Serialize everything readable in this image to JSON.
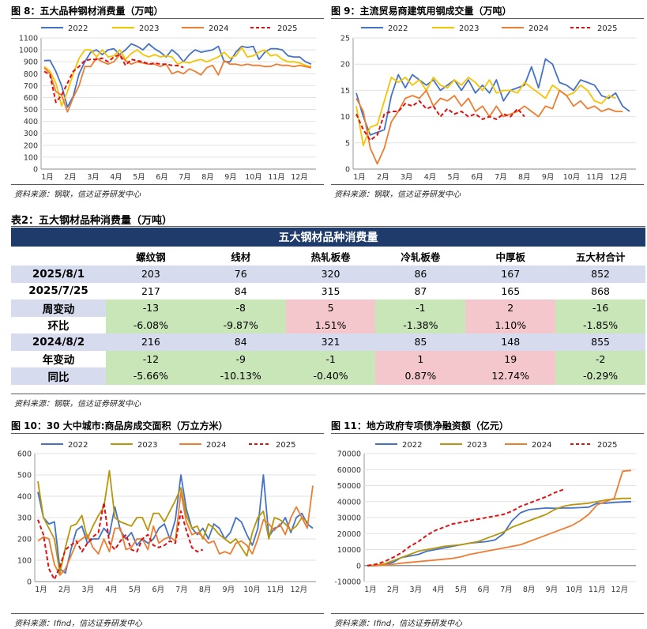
{
  "figures": {
    "fig8": {
      "title": "图 8：五大品种钢材消费量（万吨）",
      "source": "资料来源：钢联，信达证券研发中心"
    },
    "fig9": {
      "title": "图 9：主流贸易商建筑用钢成交量（万吨）",
      "source": "资料来源：钢联，信达证券研发中心"
    },
    "fig10": {
      "title": "图 10：30 大中城市:商品房成交面积（万立方米）",
      "source": "资料来源：Ifind，信达证券研发中心"
    },
    "fig11": {
      "title": "图 11：地方政府专项债净融资额（亿元）",
      "source": "资料来源：Ifind，信达证券研发中心"
    }
  },
  "table": {
    "caption": "表2：五大钢材品种消费量（万吨）",
    "title": "五大钢材品种消费量",
    "columns": [
      "",
      "螺纹钢",
      "线材",
      "热轧板卷",
      "冷轧板卷",
      "中厚板",
      "五大材合计"
    ],
    "rows": [
      {
        "label": "2025/8/1",
        "style": "blue",
        "cells": [
          "203",
          "76",
          "320",
          "86",
          "167",
          "852"
        ]
      },
      {
        "label": "2025/7/25",
        "style": "plain",
        "cells": [
          "217",
          "84",
          "315",
          "87",
          "165",
          "868"
        ]
      },
      {
        "label": "周变动",
        "style": "blue",
        "cells": [
          "-13",
          "-8",
          "5",
          "-1",
          "2",
          "-16"
        ]
      },
      {
        "label": "环比",
        "style": "plain",
        "cells": [
          "-6.08%",
          "-9.87%",
          "1.51%",
          "-1.38%",
          "1.10%",
          "-1.85%"
        ]
      },
      {
        "label": "2024/8/2",
        "style": "blue",
        "cells": [
          "216",
          "84",
          "321",
          "85",
          "148",
          "855"
        ]
      },
      {
        "label": "年变动",
        "style": "plain",
        "cells": [
          "-12",
          "-9",
          "-1",
          "1",
          "19",
          "-2"
        ]
      },
      {
        "label": "同比",
        "style": "blue",
        "cells": [
          "-5.66%",
          "-10.13%",
          "-0.40%",
          "0.87%",
          "12.74%",
          "-0.29%"
        ]
      }
    ],
    "cell_colors": {
      "negative": "#c9e6b8",
      "positive": "#f4c7cc",
      "row_highlight": "#d6dcee",
      "header": "#1f3b6b"
    }
  },
  "chart_data": [
    {
      "id": "fig8",
      "type": "line",
      "x_ticks": [
        "1月",
        "2月",
        "3月",
        "4月",
        "5月",
        "6月",
        "7月",
        "8月",
        "9月",
        "10月",
        "11月",
        "12月"
      ],
      "ylim": [
        0,
        1100
      ],
      "y_ticks": [
        0,
        100,
        200,
        300,
        400,
        500,
        600,
        700,
        800,
        900,
        1000,
        1100
      ],
      "series": [
        {
          "name": "2022",
          "color": "#4472c4",
          "dash": false,
          "values": [
            910,
            912,
            820,
            700,
            520,
            610,
            800,
            900,
            980,
            1000,
            960,
            1000,
            1010,
            960,
            1000,
            1050,
            1030,
            1000,
            1050,
            1010,
            980,
            940,
            1000,
            960,
            900,
            960,
            1000,
            980,
            990,
            1000,
            1030,
            900,
            900,
            980,
            1030,
            1020,
            1030,
            920,
            980,
            1010,
            1010,
            1000,
            950,
            940,
            940,
            900,
            880
          ]
        },
        {
          "name": "2023",
          "color": "#f5c400",
          "dash": false,
          "values": [
            860,
            820,
            720,
            530,
            650,
            800,
            930,
            1000,
            1000,
            940,
            1000,
            940,
            950,
            1000,
            920,
            970,
            1000,
            960,
            940,
            960,
            940,
            950,
            940,
            880,
            900,
            890,
            910,
            920,
            900,
            920,
            940,
            980,
            930,
            950,
            1020,
            940,
            950,
            980,
            1000,
            950,
            960,
            920,
            900,
            900,
            890,
            870,
            860
          ]
        },
        {
          "name": "2024",
          "color": "#ed7d31",
          "dash": false,
          "values": [
            850,
            800,
            650,
            620,
            480,
            600,
            700,
            860,
            860,
            930,
            900,
            880,
            900,
            960,
            910,
            880,
            900,
            890,
            880,
            880,
            860,
            880,
            800,
            820,
            800,
            840,
            820,
            790,
            850,
            870,
            790,
            910,
            880,
            880,
            870,
            880,
            870,
            870,
            860,
            860,
            880,
            870,
            870,
            860,
            870,
            860,
            850
          ]
        },
        {
          "name": "2025",
          "color": "#e01010",
          "dash": true,
          "values": [
            820,
            790,
            560,
            620,
            720,
            820,
            860,
            910,
            920,
            920,
            930,
            900,
            940,
            960,
            870,
            920,
            910,
            900,
            880,
            890,
            880,
            880,
            870,
            868,
            852
          ]
        }
      ]
    },
    {
      "id": "fig9",
      "type": "line",
      "x_ticks": [
        "1月",
        "2月",
        "3月",
        "4月",
        "5月",
        "6月",
        "7月",
        "8月",
        "9月",
        "10月",
        "11月",
        "12月"
      ],
      "ylim": [
        0,
        25
      ],
      "y_ticks": [
        0,
        5,
        10,
        15,
        20,
        25
      ],
      "series": [
        {
          "name": "2022",
          "color": "#4472c4",
          "dash": false,
          "values": [
            14.5,
            10,
            6.5,
            7,
            7.5,
            14,
            18,
            15.5,
            18,
            17,
            16,
            17,
            15,
            16,
            17,
            15,
            17,
            14.5,
            16,
            14.5,
            17,
            13,
            15,
            15.5,
            16,
            19.5,
            15.5,
            21,
            20,
            16.5,
            16,
            15,
            17,
            16.5,
            16,
            14,
            13.5,
            14.5,
            12,
            11
          ]
        },
        {
          "name": "2023",
          "color": "#f5c400",
          "dash": false,
          "values": [
            12,
            4.5,
            8,
            8.5,
            13,
            17.5,
            16.5,
            17.5,
            16,
            17,
            15,
            17.5,
            16,
            15.5,
            17,
            16,
            17.5,
            16.5,
            15,
            17,
            14.5,
            15,
            15,
            14.5,
            16.5,
            15.5,
            14.5,
            13.5,
            16,
            15,
            14,
            14.5,
            16,
            15,
            13,
            12.5,
            14,
            13.5
          ]
        },
        {
          "name": "2024",
          "color": "#ed7d31",
          "dash": false,
          "values": [
            13.5,
            11,
            4,
            1,
            4,
            9,
            11,
            13.5,
            14,
            13.5,
            15,
            12,
            13.5,
            13,
            14,
            12,
            13.5,
            11,
            12,
            10,
            12,
            10,
            10.5,
            11,
            12,
            11,
            10,
            12,
            11.5,
            15,
            14,
            12,
            13,
            11.5,
            12,
            11,
            11.5,
            11,
            11
          ]
        },
        {
          "name": "2025",
          "color": "#e01010",
          "dash": true,
          "values": [
            10.5,
            7.5,
            5.5,
            6.5,
            10.5,
            11,
            11,
            12.5,
            12,
            13,
            11.5,
            12,
            10,
            11.5,
            10.5,
            11,
            10,
            10.5,
            9.5,
            10,
            9.5,
            10.5,
            10,
            11.5,
            10
          ]
        }
      ]
    },
    {
      "id": "fig10",
      "type": "line",
      "x_ticks": [
        "1月",
        "2月",
        "3月",
        "4月",
        "5月",
        "6月",
        "7月",
        "8月",
        "9月",
        "10月",
        "11月",
        "12月"
      ],
      "ylim": [
        0,
        600
      ],
      "y_ticks": [
        0,
        100,
        200,
        300,
        400,
        500,
        600
      ],
      "series": [
        {
          "name": "2022",
          "color": "#4472c4",
          "dash": false,
          "values": [
            420,
            300,
            270,
            280,
            60,
            40,
            150,
            240,
            260,
            180,
            200,
            200,
            250,
            220,
            350,
            240,
            200,
            230,
            170,
            200,
            180,
            200,
            250,
            270,
            200,
            290,
            500,
            340,
            250,
            220,
            250,
            200,
            270,
            250,
            200,
            230,
            300,
            280,
            220,
            170,
            250,
            500,
            210,
            250,
            260,
            300,
            230,
            300,
            320,
            270,
            250
          ]
        },
        {
          "name": "2023",
          "color": "#b8960a",
          "dash": false,
          "values": [
            470,
            300,
            250,
            200,
            40,
            160,
            260,
            270,
            310,
            200,
            260,
            310,
            350,
            520,
            300,
            280,
            270,
            260,
            300,
            300,
            240,
            320,
            320,
            280,
            330,
            380,
            440,
            310,
            250,
            260,
            200,
            270,
            250,
            220,
            200,
            180,
            200,
            160,
            120,
            230,
            300,
            330,
            200,
            300,
            290,
            270,
            240,
            260,
            300,
            280
          ]
        },
        {
          "name": "2024",
          "color": "#ed7d31",
          "dash": false,
          "values": [
            190,
            210,
            200,
            80,
            30,
            60,
            120,
            180,
            200,
            220,
            160,
            130,
            200,
            140,
            250,
            250,
            150,
            160,
            200,
            200,
            150,
            260,
            180,
            200,
            210,
            190,
            420,
            280,
            220,
            230,
            210,
            180,
            190,
            130,
            140,
            130,
            180,
            190,
            170,
            130,
            200,
            290,
            270,
            240,
            270,
            220,
            300,
            350,
            300,
            250,
            450
          ]
        },
        {
          "name": "2025",
          "color": "#e01010",
          "dash": true,
          "values": [
            290,
            220,
            60,
            10,
            70,
            150,
            170,
            190,
            140,
            180,
            210,
            230,
            370,
            180,
            150,
            190,
            220,
            150,
            140,
            200,
            220,
            170,
            160,
            170,
            190,
            180,
            330,
            240,
            160,
            140,
            150
          ]
        }
      ]
    },
    {
      "id": "fig11",
      "type": "line",
      "x_ticks": [
        "1月",
        "2月",
        "3月",
        "4月",
        "5月",
        "6月",
        "7月",
        "8月",
        "9月",
        "10月",
        "11月",
        "12月"
      ],
      "ylim": [
        -10000,
        70000
      ],
      "y_ticks": [
        -10000,
        0,
        10000,
        20000,
        30000,
        40000,
        50000,
        60000,
        70000
      ],
      "series": [
        {
          "name": "2022",
          "color": "#4472c4",
          "dash": false,
          "values": [
            0,
            0,
            500,
            2000,
            5000,
            6000,
            7000,
            9000,
            10000,
            11000,
            12000,
            13000,
            14000,
            14500,
            15000,
            16000,
            20000,
            28000,
            33000,
            35000,
            35500,
            36000,
            35800,
            36000,
            36000,
            36200,
            36500,
            39000,
            39000,
            39500,
            39800,
            40000
          ]
        },
        {
          "name": "2023",
          "color": "#b8960a",
          "dash": false,
          "values": [
            0,
            200,
            1000,
            3000,
            5000,
            7000,
            9000,
            10000,
            11000,
            12000,
            12500,
            13000,
            14000,
            15000,
            17000,
            19000,
            21000,
            24000,
            26000,
            28000,
            30000,
            32000,
            35000,
            37000,
            38000,
            38500,
            39000,
            40000,
            41000,
            41500,
            42000,
            42000
          ]
        },
        {
          "name": "2024",
          "color": "#ed7d31",
          "dash": false,
          "values": [
            0,
            0,
            300,
            800,
            1500,
            2000,
            2500,
            3000,
            3500,
            4000,
            4500,
            5500,
            7000,
            8000,
            9000,
            10000,
            11000,
            12000,
            13000,
            15000,
            17000,
            19000,
            21000,
            23000,
            25000,
            28000,
            32000,
            38000,
            40000,
            42000,
            59000,
            59500
          ]
        },
        {
          "name": "2025",
          "color": "#e01010",
          "dash": true,
          "values": [
            0,
            800,
            2500,
            5000,
            8000,
            12000,
            15000,
            19000,
            22000,
            24000,
            26000,
            27000,
            28000,
            29000,
            30000,
            31000,
            32000,
            34000,
            37000,
            39000,
            41000,
            43000,
            45500,
            47500
          ]
        }
      ]
    }
  ]
}
